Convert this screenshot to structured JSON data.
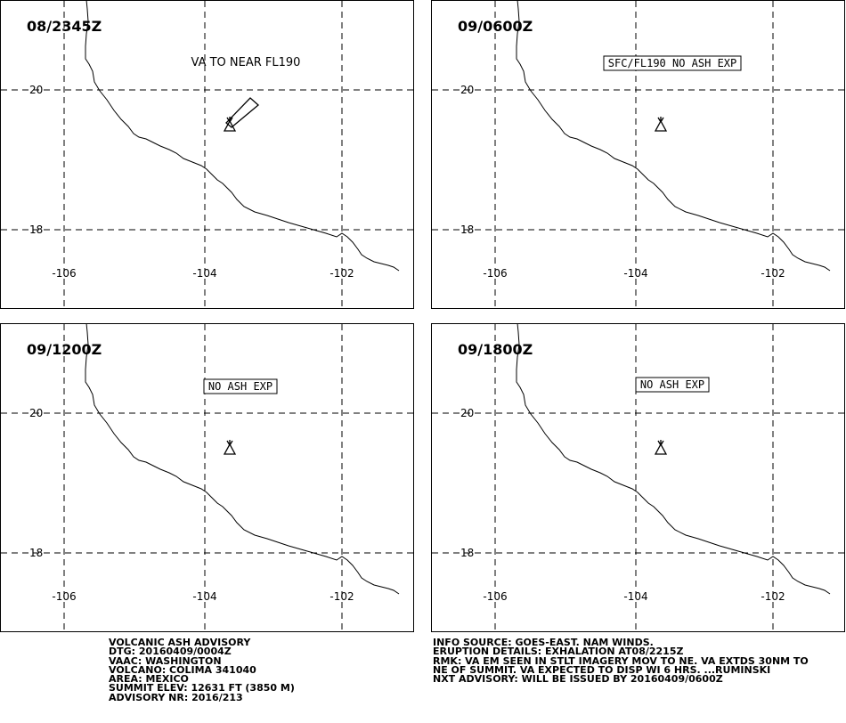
{
  "panels": [
    {
      "title": "08/2345Z",
      "note": "VA TO NEAR FL190",
      "note_boxed": false,
      "ash_cloud": true,
      "lat_labels": [
        "20",
        "18"
      ],
      "lon_labels": [
        "-106",
        "-104",
        "-102"
      ]
    },
    {
      "title": "09/0600Z",
      "note": "SFC/FL190 NO ASH EXP",
      "note_boxed": true,
      "ash_cloud": false,
      "lat_labels": [
        "20",
        "18"
      ],
      "lon_labels": [
        "-106",
        "-104",
        "-102"
      ]
    },
    {
      "title": "09/1200Z",
      "note": "NO ASH EXP",
      "note_boxed": true,
      "ash_cloud": false,
      "lat_labels": [
        "20",
        "18"
      ],
      "lon_labels": [
        "-106",
        "-104",
        "-102"
      ]
    },
    {
      "title": "09/1800Z",
      "note": "NO ASH EXP",
      "note_boxed": true,
      "ash_cloud": false,
      "lat_labels": [
        "20",
        "18"
      ],
      "lon_labels": [
        "-106",
        "-104",
        "-102"
      ]
    }
  ],
  "advisory_left": [
    "VOLCANIC ASH ADVISORY",
    "DTG: 20160409/0004Z",
    "VAAC: WASHINGTON",
    "VOLCANO: COLIMA 341040",
    "AREA: MEXICO",
    "SUMMIT ELEV: 12631 FT (3850 M)",
    "ADVISORY NR: 2016/213"
  ],
  "advisory_right": [
    "INFO SOURCE: GOES-EAST. NAM WINDS.",
    "ERUPTION DETAILS: EXHALATION AT08/2215Z",
    "RMK: VA EM SEEN IN STLT IMAGERY MOV TO NE. VA EXTDS 30NM TO",
    "NE OF SUMMIT. VA EXPECTED TO DISP WI 6 HRS. ...RUMINSKI",
    "NXT ADVISORY: WILL BE ISSUED BY 20160409/0600Z"
  ],
  "map_symbols": {
    "volcano": "volcano-icon",
    "ash_cloud": "ash-cloud-polygon"
  }
}
